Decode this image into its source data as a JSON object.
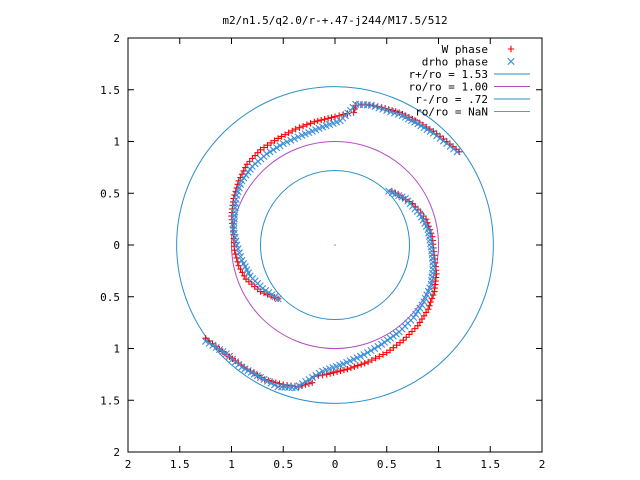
{
  "chart_data": {
    "type": "scatter",
    "title": "m2/n1.5/q2.0/r-+.47-j244/M17.5/512",
    "xlim": [
      -2,
      2
    ],
    "ylim": [
      -2,
      2
    ],
    "x_ticks": [
      -2,
      -1.5,
      -1,
      -0.5,
      0,
      0.5,
      1,
      1.5,
      2
    ],
    "y_ticks": [
      -2,
      -1.5,
      -1,
      -0.5,
      0,
      0.5,
      1,
      1.5,
      2
    ],
    "x_tick_labels": [
      "2",
      "1.5",
      "1",
      "0.5",
      "0",
      "0.5",
      "1",
      "1.5",
      "2"
    ],
    "y_tick_labels": [
      "2",
      "1.5",
      "1",
      "0.5",
      "0",
      "0.5",
      "1",
      "1.5",
      "2"
    ],
    "grid": false,
    "legend_position": "top-right",
    "series": [
      {
        "name": "W phase",
        "kind": "points",
        "marker": "plus",
        "color": "#ff0000",
        "points": [
          [
            -0.55,
            -0.52
          ],
          [
            -0.72,
            -0.45
          ],
          [
            -0.86,
            -0.33
          ],
          [
            -0.93,
            -0.2
          ],
          [
            -0.97,
            -0.05
          ],
          [
            -0.98,
            0.1
          ],
          [
            -1.0,
            0.28
          ],
          [
            -0.98,
            0.45
          ],
          [
            -0.93,
            0.62
          ],
          [
            -0.85,
            0.78
          ],
          [
            -0.72,
            0.92
          ],
          [
            -0.55,
            1.03
          ],
          [
            -0.38,
            1.12
          ],
          [
            -0.2,
            1.19
          ],
          [
            0.0,
            1.24
          ],
          [
            0.12,
            1.27
          ],
          [
            0.18,
            1.28
          ],
          [
            0.2,
            1.35
          ],
          [
            0.3,
            1.36
          ],
          [
            0.45,
            1.33
          ],
          [
            0.62,
            1.28
          ],
          [
            0.78,
            1.2
          ],
          [
            0.95,
            1.1
          ],
          [
            1.08,
            1.0
          ],
          [
            1.2,
            0.9
          ],
          [
            0.55,
            0.52
          ],
          [
            0.75,
            0.4
          ],
          [
            0.88,
            0.25
          ],
          [
            0.94,
            0.08
          ],
          [
            0.96,
            -0.1
          ],
          [
            0.98,
            -0.28
          ],
          [
            0.96,
            -0.45
          ],
          [
            0.9,
            -0.62
          ],
          [
            0.8,
            -0.78
          ],
          [
            0.66,
            -0.92
          ],
          [
            0.5,
            -1.04
          ],
          [
            0.32,
            -1.13
          ],
          [
            0.12,
            -1.2
          ],
          [
            -0.08,
            -1.25
          ],
          [
            -0.2,
            -1.27
          ],
          [
            -0.22,
            -1.33
          ],
          [
            -0.35,
            -1.37
          ],
          [
            -0.5,
            -1.35
          ],
          [
            -0.68,
            -1.3
          ],
          [
            -0.85,
            -1.2
          ],
          [
            -1.02,
            -1.08
          ],
          [
            -1.15,
            -0.98
          ],
          [
            -1.25,
            -0.9
          ]
        ]
      },
      {
        "name": "drho phase",
        "kind": "points",
        "marker": "cross",
        "color": "#3a8fd9",
        "points": [
          [
            -0.55,
            -0.52
          ],
          [
            -0.7,
            -0.42
          ],
          [
            -0.82,
            -0.3
          ],
          [
            -0.9,
            -0.15
          ],
          [
            -0.95,
            0.0
          ],
          [
            -0.98,
            0.15
          ],
          [
            -0.97,
            0.32
          ],
          [
            -0.95,
            0.48
          ],
          [
            -0.9,
            0.62
          ],
          [
            -0.8,
            0.76
          ],
          [
            -0.66,
            0.88
          ],
          [
            -0.5,
            0.98
          ],
          [
            -0.32,
            1.06
          ],
          [
            -0.12,
            1.14
          ],
          [
            0.05,
            1.2
          ],
          [
            0.15,
            1.3
          ],
          [
            0.2,
            1.36
          ],
          [
            0.35,
            1.35
          ],
          [
            0.5,
            1.3
          ],
          [
            0.65,
            1.25
          ],
          [
            0.8,
            1.17
          ],
          [
            0.95,
            1.08
          ],
          [
            1.08,
            0.98
          ],
          [
            1.18,
            0.9
          ],
          [
            0.52,
            0.52
          ],
          [
            0.68,
            0.45
          ],
          [
            0.82,
            0.3
          ],
          [
            0.9,
            0.15
          ],
          [
            0.93,
            -0.02
          ],
          [
            0.95,
            -0.2
          ],
          [
            0.93,
            -0.38
          ],
          [
            0.86,
            -0.55
          ],
          [
            0.76,
            -0.7
          ],
          [
            0.62,
            -0.84
          ],
          [
            0.45,
            -0.96
          ],
          [
            0.28,
            -1.06
          ],
          [
            0.08,
            -1.15
          ],
          [
            -0.12,
            -1.22
          ],
          [
            -0.25,
            -1.3
          ],
          [
            -0.38,
            -1.38
          ],
          [
            -0.55,
            -1.37
          ],
          [
            -0.72,
            -1.28
          ],
          [
            -0.9,
            -1.18
          ],
          [
            -1.05,
            -1.05
          ],
          [
            -1.18,
            -0.97
          ],
          [
            -1.25,
            -0.93
          ]
        ]
      },
      {
        "name": "r+/ro = 1.53",
        "kind": "circle",
        "radius": 1.53,
        "color": "#2a8fc8"
      },
      {
        "name": "ro/ro = 1.00",
        "kind": "circle",
        "radius": 1.0,
        "color": "#b44bc4"
      },
      {
        "name": "r-/ro = .72",
        "kind": "circle",
        "radius": 0.72,
        "color": "#2a8fc8"
      },
      {
        "name": "ro/ro = NaN",
        "kind": "circle",
        "radius": null,
        "color": "#30b0c0"
      }
    ]
  }
}
